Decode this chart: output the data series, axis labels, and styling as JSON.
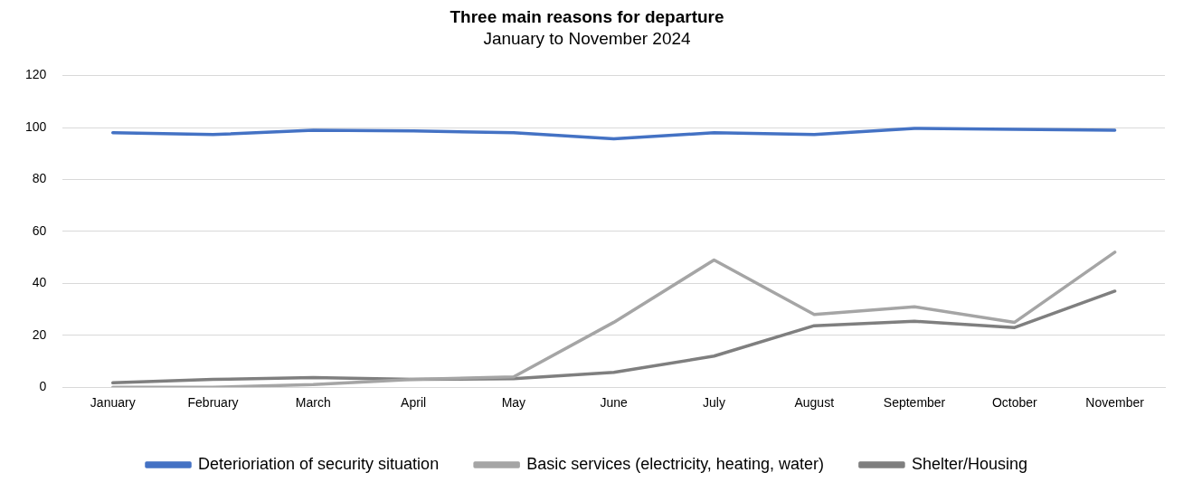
{
  "chart_data": {
    "type": "line",
    "title": "Three main reasons for departure",
    "subtitle": "January to November 2024",
    "categories": [
      "January",
      "February",
      "March",
      "April",
      "May",
      "June",
      "July",
      "August",
      "September",
      "October",
      "November"
    ],
    "series": [
      {
        "name": "Deterioriation of security situation",
        "color": "#4472c4",
        "values": [
          98,
          97.3,
          99,
          98.7,
          98,
          95.7,
          98,
          97.3,
          99.7,
          99.3,
          99
        ]
      },
      {
        "name": "Basic services (electricity, heating, water)",
        "color": "#a5a5a5",
        "values": [
          0,
          0,
          1,
          3,
          4,
          25,
          49,
          28,
          31,
          25,
          52
        ]
      },
      {
        "name": "Shelter/Housing",
        "color": "#7f7f7f",
        "values": [
          1.7,
          3,
          3.7,
          3,
          3.3,
          5.7,
          12,
          23.7,
          25.4,
          23,
          37
        ]
      }
    ],
    "ylim": [
      0,
      120
    ],
    "yticks": [
      0,
      20,
      40,
      60,
      80,
      100,
      120
    ],
    "grid": "y",
    "legend": "bottom",
    "marker": "none",
    "line_style": "solid"
  }
}
